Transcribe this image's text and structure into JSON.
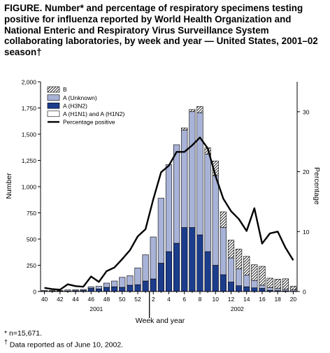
{
  "chart_data": {
    "type": "bar",
    "title": "FIGURE. Number* and percentage of respiratory specimens testing positive for influenza reported by  World Health Organization and National Enteric and Respiratory Virus Surveillance System collaborating laboratories, by week and year — United States, 2001–02 season†",
    "xlabel": "Week and year",
    "ylabel": "Number",
    "y2label": "Percentage",
    "ylim": [
      0,
      2000
    ],
    "y2lim": [
      0,
      35
    ],
    "yticks": [
      "0",
      "250",
      "500",
      "750",
      "1,000",
      "1,250",
      "1,500",
      "1,750",
      "2,000"
    ],
    "y2ticks": [
      "0",
      "10",
      "20",
      "30"
    ],
    "xticks": [
      "40",
      "42",
      "44",
      "46",
      "48",
      "50",
      "52",
      "2",
      "4",
      "6",
      "8",
      "10",
      "12",
      "14",
      "16",
      "18",
      "20"
    ],
    "year_labels": [
      "2001",
      "2002"
    ],
    "weeks": [
      "40",
      "41",
      "42",
      "43",
      "44",
      "45",
      "46",
      "47",
      "48",
      "49",
      "50",
      "51",
      "52",
      "1",
      "2",
      "3",
      "4",
      "5",
      "6",
      "7",
      "8",
      "9",
      "10",
      "11",
      "12",
      "13",
      "14",
      "15",
      "16",
      "17",
      "18",
      "19",
      "20"
    ],
    "series": [
      {
        "name": "A (H1N1) and A (H1N2)",
        "stack": "A (H1N1) and A (H1N2)",
        "values": [
          0,
          0,
          0,
          0,
          0,
          0,
          0,
          0,
          0,
          0,
          0,
          0,
          0,
          0,
          0,
          0,
          0,
          0,
          0,
          0,
          0,
          0,
          0,
          0,
          0,
          0,
          0,
          0,
          0,
          0,
          0,
          0,
          0
        ]
      },
      {
        "name": "A (H3N2)",
        "stack": "A (H3N2)",
        "values": [
          3,
          4,
          5,
          5,
          8,
          10,
          30,
          25,
          40,
          45,
          40,
          60,
          65,
          100,
          120,
          270,
          380,
          460,
          610,
          610,
          540,
          380,
          250,
          160,
          90,
          55,
          45,
          35,
          30,
          12,
          8,
          6,
          3
        ]
      },
      {
        "name": "A (Unknown)",
        "stack": "A (Unknown)",
        "values": [
          7,
          6,
          5,
          10,
          8,
          10,
          15,
          25,
          40,
          55,
          95,
          90,
          160,
          250,
          400,
          620,
          830,
          940,
          930,
          1105,
          1165,
          930,
          855,
          450,
          230,
          160,
          110,
          70,
          30,
          25,
          20,
          15,
          12
        ]
      },
      {
        "name": "B",
        "stack": "B",
        "values": [
          0,
          0,
          0,
          0,
          0,
          0,
          0,
          0,
          0,
          0,
          0,
          0,
          0,
          0,
          0,
          0,
          0,
          0,
          20,
          20,
          60,
          60,
          140,
          150,
          170,
          190,
          180,
          150,
          180,
          90,
          90,
          100,
          35
        ]
      }
    ],
    "percentage_positive": {
      "name": "Percentage positive",
      "values": [
        0.6,
        0.4,
        0.3,
        1.2,
        0.9,
        0.8,
        2.5,
        1.6,
        3.4,
        4.0,
        5.4,
        6.9,
        9.2,
        10.4,
        15.4,
        19.9,
        21.0,
        23.3,
        23.3,
        24.4,
        25.7,
        23.9,
        19.3,
        15.5,
        13.4,
        12.1,
        10.1,
        13.9,
        8.0,
        9.7,
        10.0,
        7.3,
        5.2
      ]
    },
    "legend_position": "top-left",
    "grid": false,
    "colors": {
      "A (H1N1) and A (H1N2)": "#ffffff",
      "A (H3N2)": "#1c3c8c",
      "A (Unknown)": "#a9b3d8",
      "B": "hatched",
      "Percentage positive": "#000000"
    }
  },
  "footnotes": {
    "n": "* n=15,671.",
    "reported_marker": "†",
    "reported_text": " Data reported as of June 10, 2002."
  }
}
